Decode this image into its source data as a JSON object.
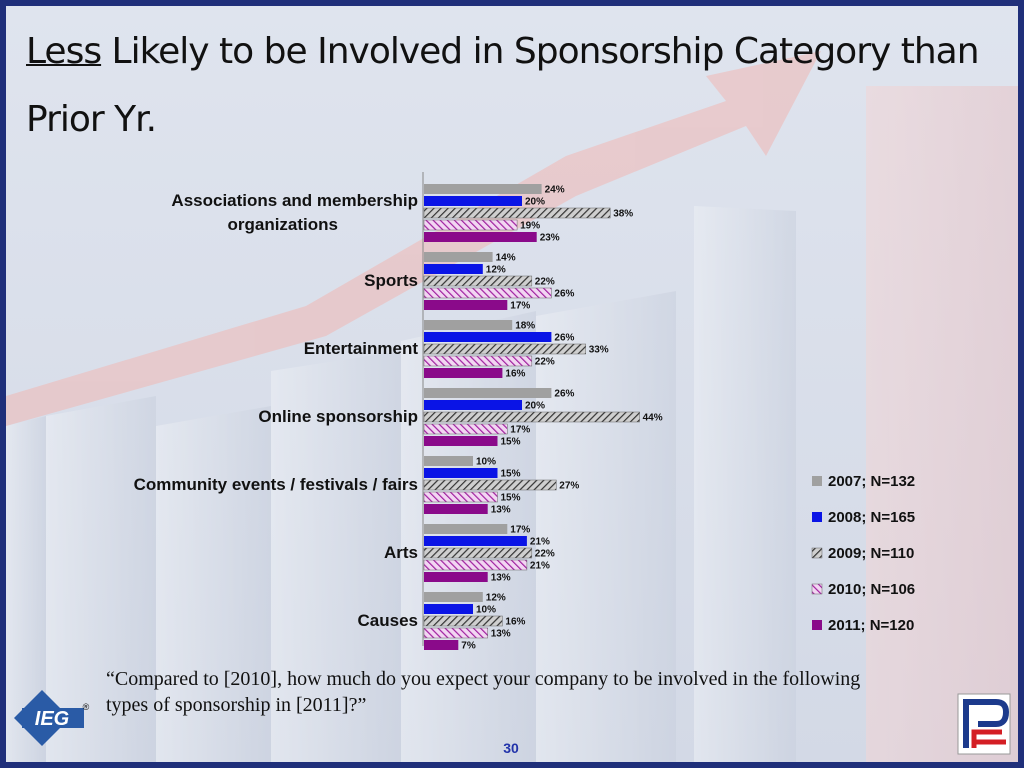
{
  "title": {
    "underlined": "Less",
    "rest": " Likely to be Involved in Sponsorship Category than Prior Yr."
  },
  "question": "“Compared to [2010], how much do you expect your company to be involved in the following types of sponsorship in [2011]?”",
  "page_number": "30",
  "logos": {
    "left_text": "IEG",
    "left_mark": "®"
  },
  "chart_data": {
    "type": "bar",
    "orientation": "horizontal",
    "categories": [
      "Associations and membership organizations",
      "Sports",
      "Entertainment",
      "Online sponsorship",
      "Community events / festivals / fairs",
      "Arts",
      "Causes"
    ],
    "series": [
      {
        "name": "2007; N=132",
        "color": "#a0a0a0",
        "pattern": "solid",
        "values": [
          24,
          14,
          18,
          26,
          10,
          17,
          12
        ]
      },
      {
        "name": "2008; N=165",
        "color": "#0a14e6",
        "pattern": "solid",
        "values": [
          20,
          12,
          26,
          20,
          15,
          21,
          10
        ]
      },
      {
        "name": "2009; N=110",
        "color": "#555555",
        "pattern": "hatch-dark",
        "values": [
          38,
          22,
          33,
          44,
          27,
          22,
          16
        ]
      },
      {
        "name": "2010; N=106",
        "color": "#a020a0",
        "pattern": "hatch-purple",
        "values": [
          19,
          26,
          22,
          17,
          15,
          21,
          13
        ]
      },
      {
        "name": "2011; N=120",
        "color": "#8a0a8a",
        "pattern": "solid",
        "values": [
          23,
          17,
          16,
          15,
          13,
          13,
          7
        ]
      }
    ],
    "value_suffix": "%",
    "xlim": [
      0,
      50
    ],
    "legend_position": "right",
    "grid": false
  }
}
